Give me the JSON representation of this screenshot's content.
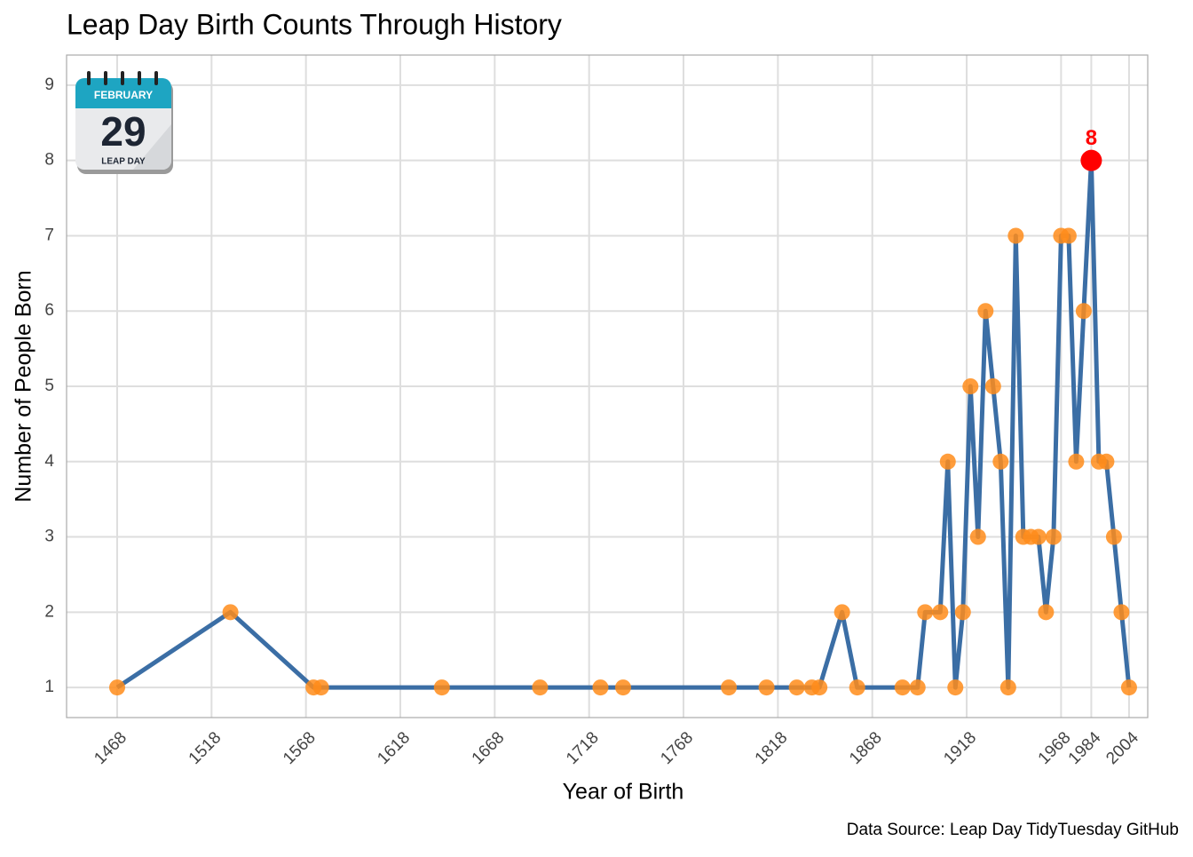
{
  "chart_data": {
    "type": "line",
    "title": "Leap Day Birth Counts Through History",
    "x_label": "Year of Birth",
    "y_label": "Number of People Born",
    "caption": "Data Source: Leap Day TidyTuesday GitHub",
    "icon_texts": {
      "month": "FEBRUARY",
      "day": "29",
      "footer": "LEAP DAY"
    },
    "x": [
      1468,
      1528,
      1572,
      1576,
      1640,
      1692,
      1724,
      1736,
      1792,
      1812,
      1828,
      1836,
      1840,
      1852,
      1860,
      1884,
      1892,
      1896,
      1904,
      1908,
      1912,
      1916,
      1920,
      1924,
      1928,
      1932,
      1936,
      1940,
      1944,
      1948,
      1952,
      1956,
      1960,
      1964,
      1968,
      1972,
      1976,
      1980,
      1984,
      1988,
      1992,
      1996,
      2000,
      2004
    ],
    "values": [
      1,
      2,
      1,
      1,
      1,
      1,
      1,
      1,
      1,
      1,
      1,
      1,
      1,
      2,
      1,
      1,
      1,
      2,
      2,
      4,
      1,
      2,
      5,
      3,
      6,
      5,
      4,
      1,
      7,
      3,
      3,
      3,
      2,
      3,
      7,
      7,
      4,
      6,
      8,
      4,
      4,
      3,
      2,
      1
    ],
    "line_color": "#3b6ea5",
    "point_color": "#ff8c1a",
    "highlight_color": "#ff0000",
    "xlim": [
      1441.2,
      2013.9
    ],
    "ylim": [
      0.6,
      9.4
    ],
    "xticks": [
      1468,
      1518,
      1568,
      1618,
      1668,
      1718,
      1768,
      1818,
      1868,
      1918,
      1968,
      1984,
      2004
    ],
    "yticks": [
      1,
      2,
      3,
      4,
      5,
      6,
      7,
      8,
      9
    ],
    "grid": true
  }
}
